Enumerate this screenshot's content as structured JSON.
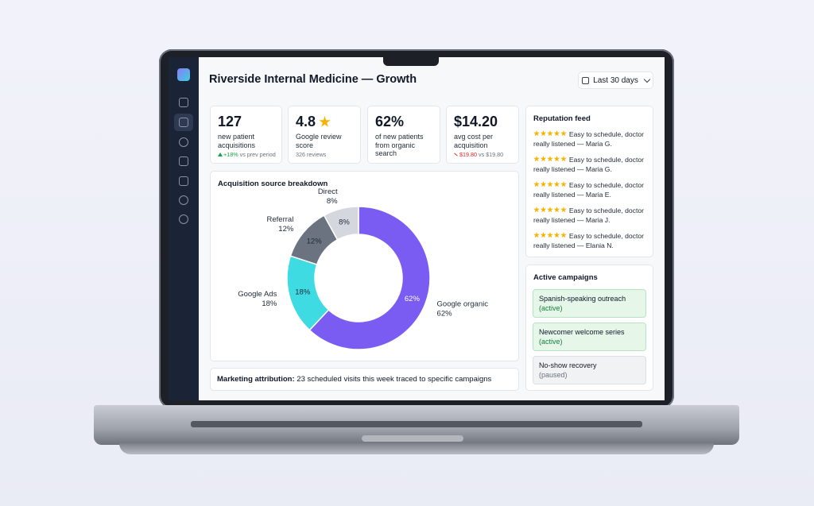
{
  "header": {
    "title": "Riverside Internal Medicine — Growth",
    "date_range": "Last 30 days"
  },
  "kpis": [
    {
      "value": "127",
      "label": "new patient acquisitions",
      "delta": "+18%",
      "note": "vs prev period"
    },
    {
      "value": "4.8",
      "label": "Google review score",
      "note": "326 reviews"
    },
    {
      "value": "62%",
      "label": "of new patients from organic search"
    },
    {
      "value": "$14.20",
      "label": "avg cost per acquisition",
      "delta": "$19.80",
      "note": "vs $19.80"
    }
  ],
  "chart_data": {
    "type": "donut",
    "title": "Acquisition source breakdown",
    "categories": [
      "Google organic",
      "Google Ads",
      "Referral",
      "Direct"
    ],
    "values": [
      62,
      18,
      12,
      8
    ],
    "value_labels": [
      "62%",
      "18%",
      "12%",
      "8%"
    ],
    "colors": [
      "#7b5cf2",
      "#3fdbe3",
      "#6b7280",
      "#d4d7de"
    ]
  },
  "attribution": {
    "label": "Marketing attribution:",
    "text": "23 scheduled visits this week traced to specific campaigns"
  },
  "reputation": {
    "title": "Reputation feed",
    "items": [
      {
        "text": "Easy to schedule, doctor really listened",
        "author": "— Maria G."
      },
      {
        "text": "Easy to schedule, doctor really listened",
        "author": "— Maria G."
      },
      {
        "text": "Easy to schedule, doctor really listened",
        "author": "— Maria E."
      },
      {
        "text": "Easy to schedule, doctor really listened",
        "author": "— Maria J."
      },
      {
        "text": "Easy to schedule, doctor really listened",
        "author": "— Elania N."
      }
    ]
  },
  "campaigns": {
    "title": "Active campaigns",
    "items": [
      {
        "name": "Spanish-speaking outreach",
        "status": "(active)"
      },
      {
        "name": "Newcomer welcome series",
        "status": "(active)"
      },
      {
        "name": "No-show recovery",
        "status": "(paused)"
      }
    ]
  }
}
